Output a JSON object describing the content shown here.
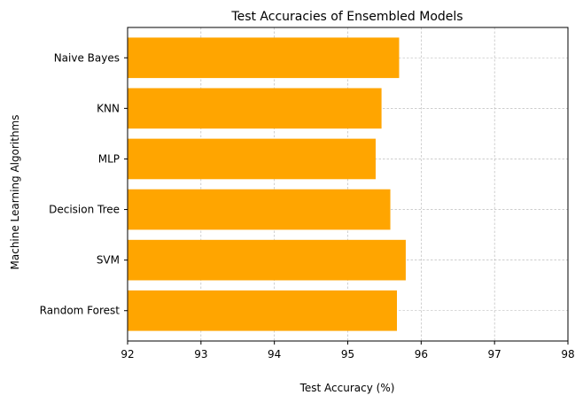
{
  "chart_data": {
    "type": "bar",
    "orientation": "horizontal",
    "title": "Test Accuracies of Ensembled Models",
    "xlabel": "Test Accuracy (%)",
    "ylabel": "Machine Learning Algorithms",
    "categories": [
      "Random Forest",
      "SVM",
      "Decision Tree",
      "MLP",
      "KNN",
      "Naive Bayes"
    ],
    "values": [
      95.67,
      95.79,
      95.58,
      95.38,
      95.46,
      95.7
    ],
    "xlim": [
      92,
      98
    ],
    "xticks": [
      "92",
      "93",
      "94",
      "95",
      "96",
      "97",
      "98"
    ],
    "grid": true,
    "bar_color": "#ffa500"
  }
}
